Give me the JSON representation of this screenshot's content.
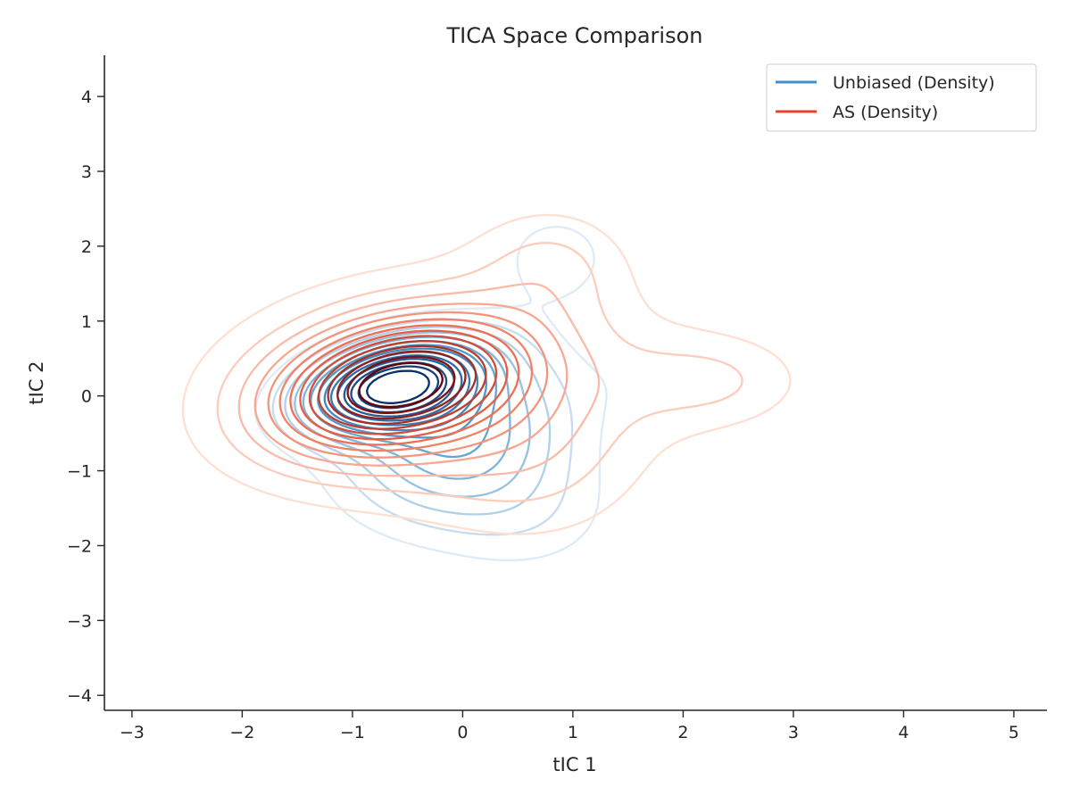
{
  "chart_data": {
    "type": "contour",
    "title": "TICA Space Comparison",
    "xlabel": "tIC 1",
    "ylabel": "tIC 2",
    "xlim": [
      -3.25,
      5.3
    ],
    "ylim": [
      -4.2,
      4.55
    ],
    "xticks": [
      -3,
      -2,
      -1,
      0,
      1,
      2,
      3,
      4,
      5
    ],
    "yticks": [
      -4,
      -3,
      -2,
      -1,
      0,
      1,
      2,
      3,
      4
    ],
    "xtick_labels": [
      "−3",
      "−2",
      "−1",
      "0",
      "1",
      "2",
      "3",
      "4",
      "5"
    ],
    "ytick_labels": [
      "−4",
      "−3",
      "−2",
      "−1",
      "0",
      "1",
      "2",
      "3",
      "4"
    ],
    "grid": false,
    "legend_position": "top-right",
    "series": [
      {
        "name": "Unbiased (Density)",
        "color": "#3f8fc9",
        "colormap": "Blues",
        "components": [
          {
            "weight": 1.0,
            "mx": -0.65,
            "my": 0.15,
            "sx": 0.55,
            "sy": 0.42,
            "rho": 0.35
          },
          {
            "weight": 0.45,
            "mx": -0.05,
            "my": -0.55,
            "sx": 0.7,
            "sy": 0.75,
            "rho": 0.2
          },
          {
            "weight": 0.12,
            "mx": 0.85,
            "my": 1.85,
            "sx": 0.45,
            "sy": 0.55,
            "rho": 0.0
          },
          {
            "weight": 0.07,
            "mx": 2.1,
            "my": 0.25,
            "sx": 0.6,
            "sy": 0.4,
            "rho": 0.0
          },
          {
            "weight": 0.12,
            "mx": 0.6,
            "my": -1.6,
            "sx": 0.6,
            "sy": 0.6,
            "rho": 0.0
          }
        ]
      },
      {
        "name": "AS (Density)",
        "color": "#e8402e",
        "colormap": "Reds",
        "components": [
          {
            "weight": 1.0,
            "mx": -0.6,
            "my": 0.15,
            "sx": 0.7,
            "sy": 0.55,
            "rho": 0.3
          },
          {
            "weight": 0.38,
            "mx": -0.3,
            "my": 0.1,
            "sx": 1.3,
            "sy": 1.0,
            "rho": 0.1
          },
          {
            "weight": 0.16,
            "mx": 0.8,
            "my": 1.8,
            "sx": 0.5,
            "sy": 0.55,
            "rho": 0.0
          },
          {
            "weight": 0.17,
            "mx": 2.3,
            "my": 0.2,
            "sx": 0.6,
            "sy": 0.45,
            "rho": 0.0
          },
          {
            "weight": 0.12,
            "mx": 0.7,
            "my": -1.0,
            "sx": 0.7,
            "sy": 0.8,
            "rho": 0.0
          }
        ]
      }
    ]
  }
}
